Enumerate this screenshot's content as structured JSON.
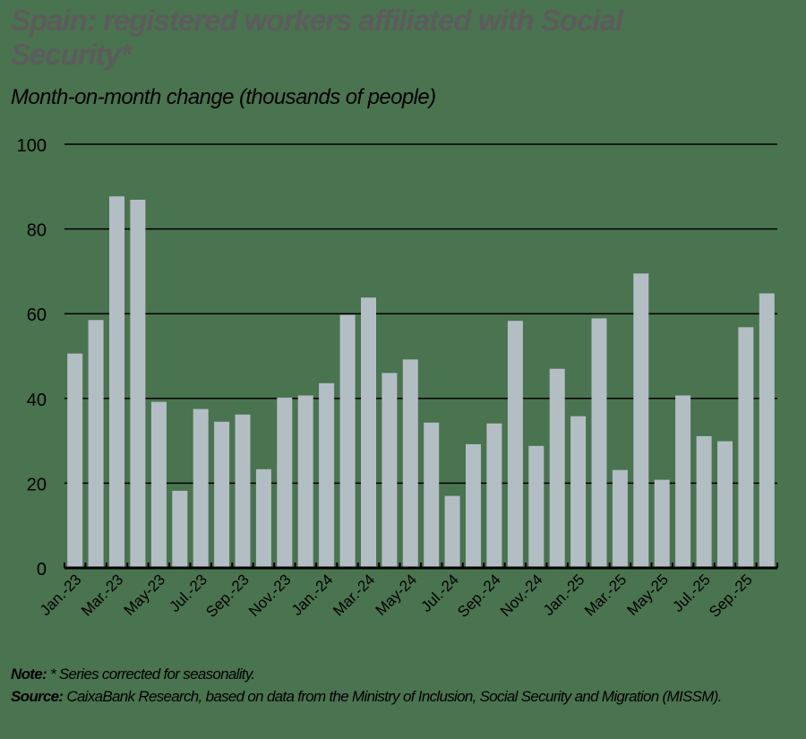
{
  "title": "Spain: registered workers affiliated with Social Security*",
  "subtitle": "Month-on-month change (thousands of people)",
  "note_label": "Note:",
  "note_text": " * Series corrected for seasonality.",
  "source_label": "Source:",
  "source_text": " CaixaBank Research, based on data from the Ministry of Inclusion, Social Security and Migration (MISSM).",
  "colors": {
    "background": "#4a7350",
    "bar": "#b3bec4",
    "title": "#5c5c5c",
    "grid": "#000000"
  },
  "chart_data": {
    "type": "bar",
    "title": "Spain: registered workers affiliated with Social Security*",
    "subtitle": "Month-on-month change (thousands of people)",
    "xlabel": "",
    "ylabel": "",
    "ylim": [
      0,
      100
    ],
    "yticks": [
      0,
      20,
      40,
      60,
      80,
      100
    ],
    "grid": true,
    "legend": null,
    "categories": [
      "Jan.-23",
      "Feb.-23",
      "Mar.-23",
      "Apr.-23",
      "May-23",
      "Jun.-23",
      "Jul.-23",
      "Aug.-23",
      "Sep.-23",
      "Oct.-23",
      "Nov.-23",
      "Dec.-23",
      "Jan.-24",
      "Feb.-24",
      "Mar.-24",
      "Apr.-24",
      "May-24",
      "Jun.-24",
      "Jul.-24",
      "Aug.-24",
      "Sep.-24",
      "Oct.-24",
      "Nov.-24",
      "Dec.-24",
      "Jan.-25",
      "Feb.-25",
      "Mar.-25",
      "Apr.-25",
      "May-25",
      "Jun.-25",
      "Jul.-25",
      "Aug.-25",
      "Sep.-25",
      "Oct.-25"
    ],
    "xtick_labels": [
      "Jan.-23",
      "Mar.-23",
      "May-23",
      "Jul.-23",
      "Sep.-23",
      "Nov.-23",
      "Jan.-24",
      "Mar.-24",
      "May-24",
      "Jul.-24",
      "Sep.-24",
      "Nov.-24",
      "Jan.-25",
      "Mar.-25",
      "May-25",
      "Jul.-25",
      "Sep.-25"
    ],
    "values": [
      50.6,
      58.5,
      87.7,
      86.9,
      39.2,
      18.2,
      37.5,
      34.5,
      36.2,
      23.3,
      40.2,
      40.7,
      43.6,
      59.7,
      63.8,
      46.0,
      49.2,
      34.3,
      17.0,
      29.2,
      34.1,
      58.3,
      28.8,
      47.0,
      35.8,
      58.9,
      23.1,
      69.5,
      20.8,
      40.7,
      31.1,
      29.9,
      56.8,
      64.8
    ]
  }
}
